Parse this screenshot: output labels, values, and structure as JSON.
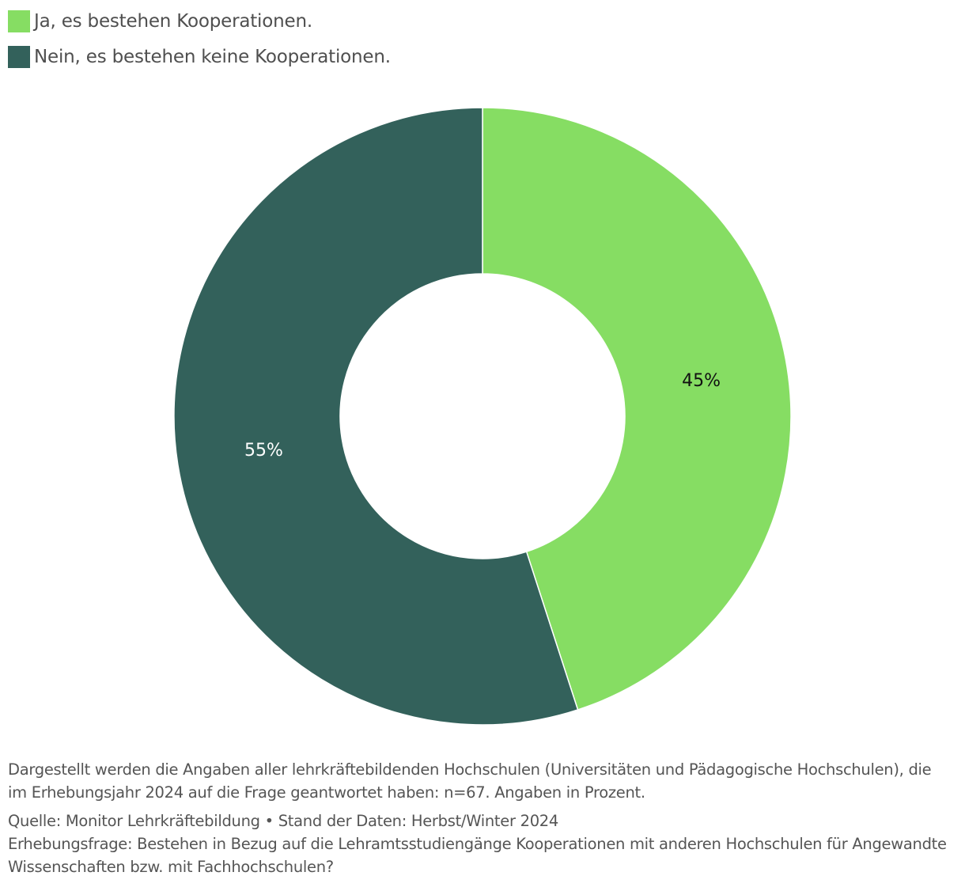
{
  "chart_data": {
    "type": "pie",
    "donut": true,
    "slices": [
      {
        "label": "Ja, es bestehen Kooperationen.",
        "value": 45,
        "value_label": "45%",
        "color": "#86dd63",
        "label_color": "#111111"
      },
      {
        "label": "Nein, es bestehen keine Kooperationen.",
        "value": 55,
        "value_label": "55%",
        "color": "#33615b",
        "label_color": "#ffffff"
      }
    ],
    "legend_position": "top-left"
  },
  "footer": {
    "note": "Dargestellt werden die Angaben aller lehrkräftebildenden Hochschulen (Universitäten und Pädagogische Hochschulen), die im Erhebungsjahr 2024 auf die Frage geantwortet haben: n=67. Angaben in Prozent.",
    "source": "Quelle: Monitor Lehrkräftebildung • Stand der Daten: Herbst/Winter 2024",
    "question": "Erhebungsfrage: Bestehen in Bezug auf die Lehramtsstudiengänge Kooperationen mit anderen Hochschulen für Angewandte Wissenschaften bzw. mit Fachhochschulen?"
  }
}
